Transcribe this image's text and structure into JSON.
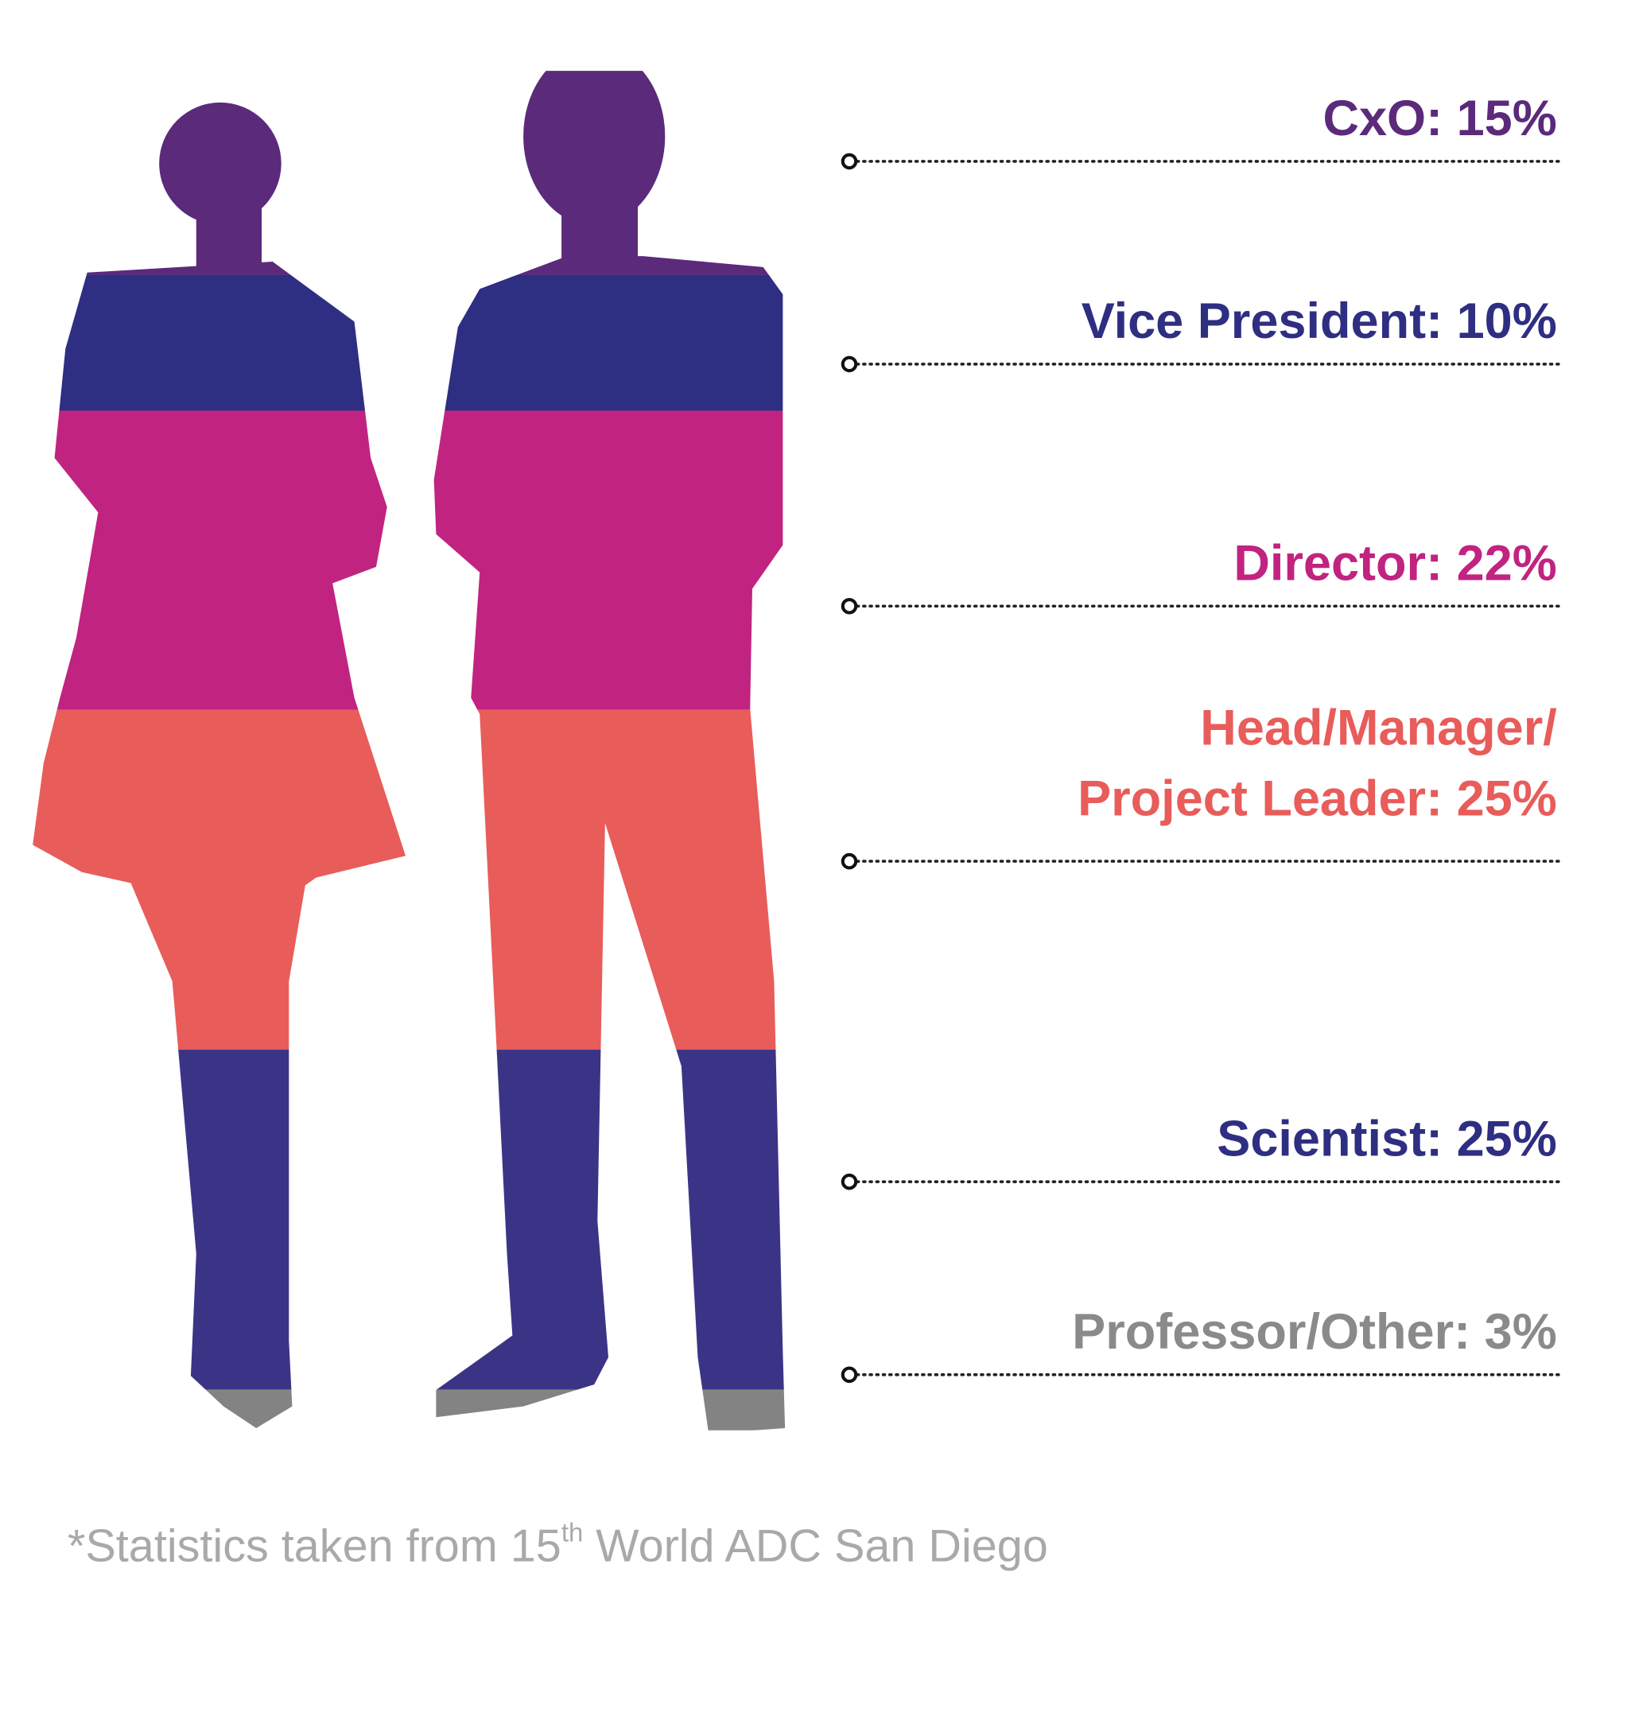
{
  "chart_data": {
    "type": "pictograph",
    "values": [
      15,
      10,
      22,
      25,
      25,
      3
    ],
    "value_labels": [
      "CxO: 15%",
      "Vice President: 10%",
      "Director: 22%",
      [
        "Head/Manager/",
        "Project Leader: 25%"
      ],
      "Scientist: 25%",
      "Professor/Other: 3%"
    ],
    "colors": [
      "#5b2a7b",
      "#2e2e82",
      "#c12380",
      "#e85c5a",
      "#3b3486",
      "#838383"
    ],
    "label_colors": [
      "#5b2a7b",
      "#2e2e82",
      "#c12380",
      "#e85c5a",
      "#2e2e82",
      "#8a8a8a"
    ],
    "note": [
      "*Statistics taken from 15",
      "th",
      " World ADC San Diego"
    ]
  }
}
